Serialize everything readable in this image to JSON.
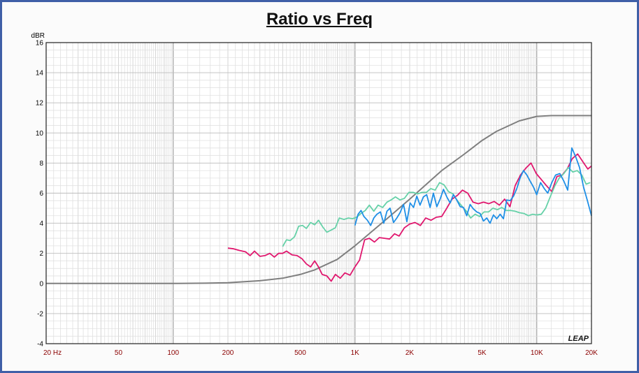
{
  "chart_data": {
    "type": "line",
    "title": "Ratio vs Freq",
    "ylabel": "dBR",
    "xscale": "log",
    "xlim": [
      20,
      20000
    ],
    "ylim": [
      -4,
      16
    ],
    "grid": true,
    "yticks": [
      -4,
      -2,
      0,
      2,
      4,
      6,
      8,
      10,
      12,
      14,
      16
    ],
    "yticklabels": [
      "-4",
      "-2",
      "0",
      "2",
      "4",
      "6",
      "8",
      "10",
      "12",
      "14",
      "16"
    ],
    "xticks": [
      20,
      50,
      100,
      200,
      500,
      1000,
      2000,
      5000,
      10000,
      20000
    ],
    "xticklabels": [
      "20  Hz",
      "50",
      "100",
      "200",
      "500",
      "1K",
      "2K",
      "5K",
      "10K",
      "20K"
    ],
    "logo": "LEAP",
    "series": [
      {
        "color": "#7f7f7f",
        "x": [
          20,
          50,
          100,
          150,
          200,
          300,
          400,
          500,
          600,
          800,
          1000,
          1500,
          2000,
          3000,
          4000,
          5000,
          6000,
          8000,
          10000,
          12000,
          15000,
          20000
        ],
        "y": [
          0,
          0,
          0,
          0.02,
          0.05,
          0.18,
          0.35,
          0.6,
          0.9,
          1.6,
          2.5,
          4.3,
          5.6,
          7.5,
          8.6,
          9.5,
          10.1,
          10.8,
          11.1,
          11.15,
          11.15,
          11.15
        ]
      },
      {
        "color": "#e0176e",
        "x": [
          200,
          215,
          230,
          250,
          265,
          280,
          300,
          320,
          340,
          360,
          380,
          400,
          420,
          450,
          480,
          510,
          540,
          570,
          600,
          630,
          660,
          700,
          740,
          780,
          830,
          880,
          940,
          1000,
          1060,
          1130,
          1200,
          1280,
          1360,
          1450,
          1550,
          1650,
          1750,
          1870,
          2000,
          2140,
          2290,
          2450,
          2620,
          2800,
          3000,
          3200,
          3420,
          3660,
          3900,
          4170,
          4460,
          4770,
          5100,
          5450,
          5830,
          6230,
          6660,
          7120,
          7610,
          8140,
          8700,
          9300,
          9940,
          10600,
          11300,
          12100,
          12900,
          13800,
          14700,
          15700,
          16800,
          17900,
          19100,
          20000
        ],
        "y": [
          2.35,
          2.3,
          2.2,
          2.1,
          1.85,
          2.15,
          1.8,
          1.85,
          2.0,
          1.75,
          2.0,
          2.0,
          2.15,
          1.9,
          1.85,
          1.65,
          1.3,
          1.1,
          1.5,
          1.1,
          0.6,
          0.5,
          0.15,
          0.6,
          0.35,
          0.7,
          0.55,
          1.1,
          1.55,
          2.9,
          3.0,
          2.75,
          3.05,
          3.0,
          2.95,
          3.3,
          3.15,
          3.7,
          3.95,
          4.05,
          3.85,
          4.35,
          4.2,
          4.4,
          4.45,
          5.0,
          5.6,
          5.85,
          6.2,
          6.0,
          5.4,
          5.3,
          5.4,
          5.3,
          5.45,
          5.2,
          5.6,
          5.1,
          6.5,
          7.2,
          7.65,
          8.0,
          7.3,
          6.9,
          6.5,
          6.1,
          7.1,
          7.2,
          7.6,
          8.3,
          8.6,
          8.1,
          7.6,
          7.8
        ]
      },
      {
        "color": "#66d1a8",
        "x": [
          400,
          420,
          440,
          465,
          490,
          515,
          540,
          570,
          600,
          630,
          665,
          700,
          740,
          780,
          820,
          870,
          920,
          970,
          1020,
          1080,
          1140,
          1200,
          1270,
          1340,
          1420,
          1500,
          1580,
          1670,
          1770,
          1870,
          1980,
          2090,
          2210,
          2340,
          2470,
          2610,
          2760,
          2920,
          3090,
          3270,
          3460,
          3660,
          3870,
          4100,
          4330,
          4580,
          4850,
          5130,
          5430,
          5740,
          6070,
          6420,
          6790,
          7180,
          7600,
          8040,
          8500,
          9000,
          9500,
          10000,
          10600,
          11200,
          11900,
          12600,
          13300,
          14100,
          14900,
          15800,
          16700,
          17700,
          18700,
          19700
        ],
        "y": [
          2.45,
          2.9,
          2.85,
          3.1,
          3.8,
          3.85,
          3.65,
          4.05,
          3.9,
          4.2,
          3.75,
          3.4,
          3.55,
          3.7,
          4.35,
          4.25,
          4.35,
          4.3,
          4.4,
          4.65,
          4.85,
          5.2,
          4.8,
          5.2,
          5.05,
          5.4,
          5.55,
          5.75,
          5.55,
          5.65,
          6.05,
          6.05,
          5.95,
          6.05,
          6.05,
          6.3,
          6.2,
          6.7,
          6.55,
          6.1,
          5.95,
          5.5,
          5.15,
          4.8,
          4.35,
          4.6,
          4.45,
          4.75,
          4.75,
          5.0,
          4.9,
          5.05,
          4.85,
          4.85,
          4.8,
          4.7,
          4.65,
          4.5,
          4.6,
          4.55,
          4.6,
          5.0,
          5.8,
          6.5,
          7.0,
          7.3,
          7.7,
          7.4,
          7.5,
          7.2,
          6.6,
          6.7
        ]
      },
      {
        "color": "#1f8fe6",
        "x": [
          1000,
          1040,
          1080,
          1120,
          1170,
          1220,
          1270,
          1320,
          1380,
          1440,
          1500,
          1560,
          1630,
          1700,
          1770,
          1850,
          1930,
          2010,
          2100,
          2190,
          2280,
          2380,
          2480,
          2590,
          2700,
          2820,
          2940,
          3070,
          3200,
          3340,
          3480,
          3630,
          3790,
          3950,
          4120,
          4300,
          4480,
          4680,
          4880,
          5090,
          5310,
          5540,
          5780,
          6030,
          6290,
          6560,
          6840,
          7140,
          7450,
          7770,
          8100,
          8450,
          8820,
          9200,
          9600,
          10000,
          10500,
          11000,
          11500,
          12100,
          12700,
          13400,
          14100,
          14800,
          15600,
          16400,
          17200,
          18100,
          19000,
          20000
        ],
        "y": [
          3.85,
          4.6,
          4.85,
          4.45,
          4.2,
          3.85,
          4.35,
          4.6,
          4.75,
          4.0,
          4.8,
          5.0,
          4.05,
          4.35,
          4.7,
          5.25,
          4.1,
          5.35,
          5.05,
          5.8,
          5.2,
          5.75,
          5.9,
          5.05,
          6.0,
          5.1,
          5.6,
          6.25,
          5.75,
          5.35,
          5.9,
          5.55,
          5.1,
          5.05,
          4.5,
          5.25,
          4.95,
          4.75,
          4.65,
          4.15,
          4.35,
          4.0,
          4.55,
          4.3,
          4.6,
          4.3,
          5.55,
          5.5,
          5.8,
          6.3,
          7.0,
          7.5,
          7.2,
          6.8,
          6.4,
          5.9,
          6.7,
          6.3,
          6.0,
          6.7,
          7.2,
          7.3,
          6.8,
          6.2,
          9.0,
          8.4,
          7.7,
          6.4,
          5.5,
          4.5
        ]
      }
    ]
  }
}
